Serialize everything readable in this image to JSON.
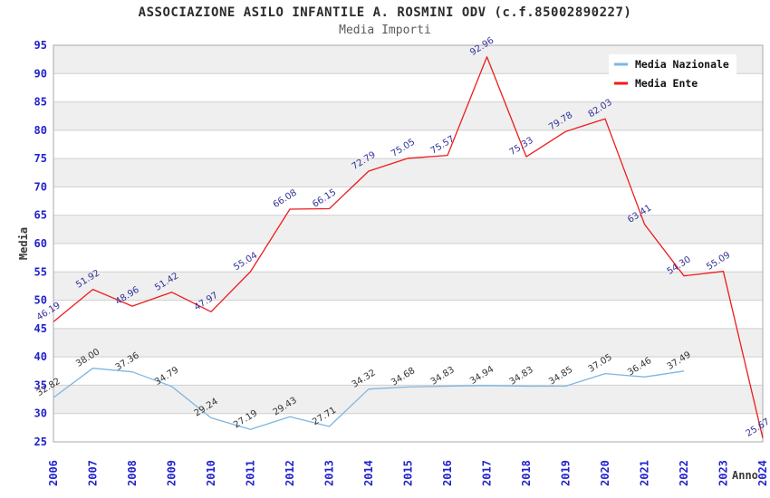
{
  "header": {
    "title": "ASSOCIAZIONE ASILO INFANTILE A. ROSMINI ODV (c.f.85002890227)",
    "subtitle": "Media Importi"
  },
  "colors": {
    "media_nazionale_line": "#7db6e2",
    "media_ente_line": "#ee1c1c",
    "axis_tick_text": "#2222cc",
    "band_fill": "#efefef",
    "nazionale_label_text": "#333333",
    "ente_label_text": "#32329b"
  },
  "chart_data": {
    "type": "line",
    "title": "ASSOCIAZIONE ASILO INFANTILE A. ROSMINI ODV (c.f.85002890227)",
    "subtitle": "Media Importi",
    "xlabel": "Anno",
    "ylabel": "Media",
    "ylim": [
      25,
      95
    ],
    "ytick_step": 5,
    "grid": true,
    "banded_background": true,
    "legend_position": "top-right",
    "x": [
      "2006",
      "2007",
      "2008",
      "2009",
      "2010",
      "2011",
      "2012",
      "2013",
      "2014",
      "2015",
      "2016",
      "2017",
      "2018",
      "2019",
      "2020",
      "2021",
      "2022",
      "2023",
      "2024"
    ],
    "series": [
      {
        "name": "Media Nazionale",
        "color": "#7db6e2",
        "label_color": "#333333",
        "values": [
          32.82,
          38.0,
          37.36,
          34.79,
          29.24,
          27.19,
          29.43,
          27.71,
          34.32,
          34.68,
          34.83,
          34.94,
          34.83,
          34.85,
          37.05,
          36.46,
          37.49,
          null,
          null
        ]
      },
      {
        "name": "Media Ente",
        "color": "#ee1c1c",
        "label_color": "#32329b",
        "values": [
          46.19,
          51.92,
          48.96,
          51.42,
          47.97,
          55.04,
          66.08,
          66.15,
          72.79,
          75.05,
          75.57,
          92.96,
          75.33,
          79.78,
          82.03,
          63.41,
          54.3,
          55.09,
          25.67
        ]
      }
    ]
  }
}
